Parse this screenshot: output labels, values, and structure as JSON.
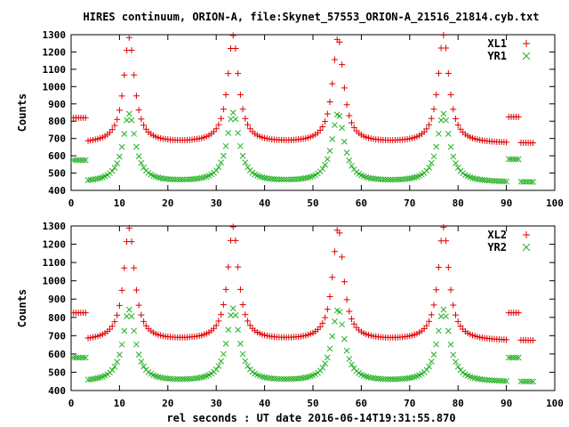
{
  "title": "HIRES continuum, ORION-A, file:Skynet_57553_ORION-A_21516_21814.cyb.txt",
  "xlabel": "rel seconds : UT date 2016-06-14T19:31:55.870",
  "colors": {
    "red": "#e00000",
    "green": "#20b020"
  },
  "chart_data": [
    {
      "type": "scatter",
      "ylabel": "Counts",
      "xlim": [
        0,
        100
      ],
      "ylim": [
        400,
        1300
      ],
      "xticks": [
        0,
        10,
        20,
        30,
        40,
        50,
        60,
        70,
        80,
        90,
        100
      ],
      "yticks": [
        400,
        500,
        600,
        700,
        800,
        900,
        1000,
        1100,
        1200,
        1300
      ],
      "legend_position": "top-right",
      "grid": false,
      "baseline_red": 670,
      "baseline_green": 445,
      "segments": [
        {
          "from": 0,
          "to": 3.0,
          "red": 820,
          "green": 575
        },
        {
          "from": 90.5,
          "to": 92.5,
          "red": 825,
          "green": 580
        }
      ],
      "peaks": [
        {
          "x": 12,
          "red": 1280,
          "green": 840
        },
        {
          "x": 33.5,
          "red": 1290,
          "green": 845
        },
        {
          "x": 55.2,
          "red": 1280,
          "green": 840
        },
        {
          "x": 77,
          "red": 1295,
          "green": 840
        }
      ],
      "x_range_sampled": [
        0.5,
        95.5
      ],
      "series": [
        {
          "name": "XL1",
          "color": "#e00000",
          "marker": "+"
        },
        {
          "name": "YR1",
          "color": "#20b020",
          "marker": "x"
        }
      ]
    },
    {
      "type": "scatter",
      "ylabel": "Counts",
      "xlim": [
        0,
        100
      ],
      "ylim": [
        400,
        1300
      ],
      "xticks": [
        0,
        10,
        20,
        30,
        40,
        50,
        60,
        70,
        80,
        90,
        100
      ],
      "yticks": [
        400,
        500,
        600,
        700,
        800,
        900,
        1000,
        1100,
        1200,
        1300
      ],
      "legend_position": "top-right",
      "grid": false,
      "baseline_red": 670,
      "baseline_green": 445,
      "segments": [
        {
          "from": 0,
          "to": 3.0,
          "red": 825,
          "green": 580
        },
        {
          "from": 90.5,
          "to": 92.5,
          "red": 825,
          "green": 580
        }
      ],
      "peaks": [
        {
          "x": 12,
          "red": 1285,
          "green": 840
        },
        {
          "x": 33.5,
          "red": 1290,
          "green": 845
        },
        {
          "x": 55.2,
          "red": 1285,
          "green": 840
        },
        {
          "x": 77,
          "red": 1290,
          "green": 840
        }
      ],
      "x_range_sampled": [
        0.5,
        95.5
      ],
      "series": [
        {
          "name": "XL2",
          "color": "#e00000",
          "marker": "+"
        },
        {
          "name": "YR2",
          "color": "#20b020",
          "marker": "x"
        }
      ]
    }
  ]
}
